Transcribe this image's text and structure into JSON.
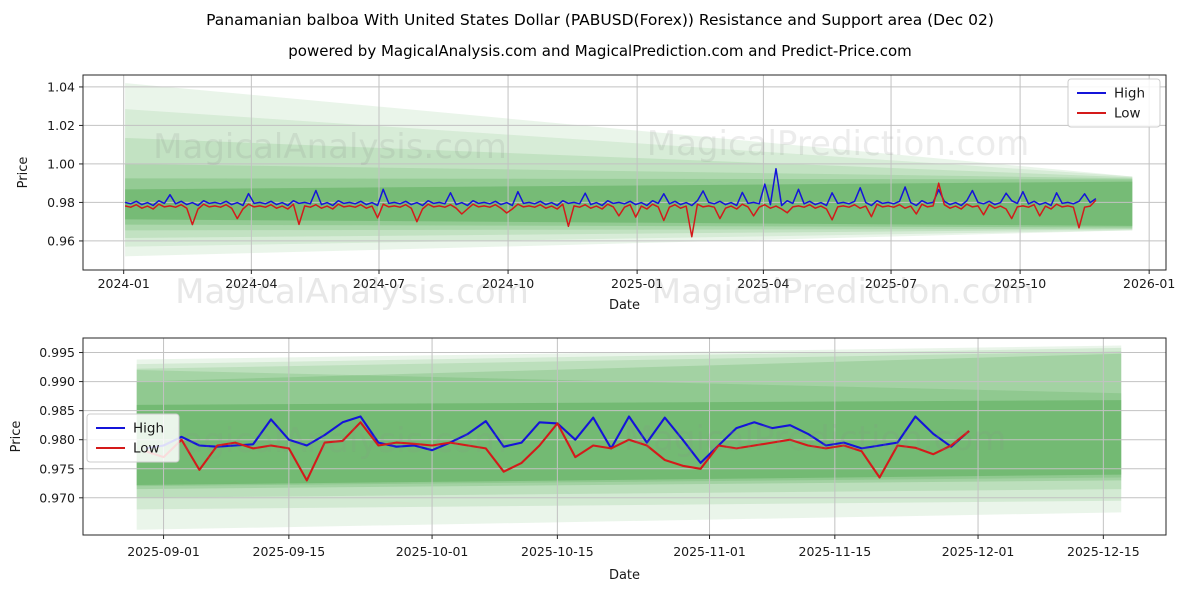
{
  "page": {
    "title": "Panamanian balboa With United States Dollar (PABUSD(Forex)) Resistance and Support area (Dec 02)",
    "subtitle": "powered by MagicalAnalysis.com and MagicalPrediction.com and Predict-Price.com"
  },
  "colors": {
    "high": "#1414d9",
    "low": "#d41a1a",
    "band": "#339933",
    "grid": "#c2c2c2",
    "axis": "#262626",
    "text": "#1a1a1a",
    "watermark": "#8a8a8a",
    "legend_border": "#cccccc",
    "legend_bg": "#ffffff"
  },
  "watermark_texts": [
    "MagicalAnalysis.com",
    "MagicalPrediction.com"
  ],
  "chart_data": [
    {
      "type": "line",
      "title": "",
      "xlabel": "Date",
      "ylabel": "Price",
      "xlim": [
        "2023-12-03",
        "2026-01-13"
      ],
      "ylim": [
        0.9449,
        1.0462
      ],
      "xticks": [
        {
          "v": "2024-01-01",
          "label": "2024-01"
        },
        {
          "v": "2024-04-01",
          "label": "2024-04"
        },
        {
          "v": "2024-07-01",
          "label": "2024-07"
        },
        {
          "v": "2024-10-01",
          "label": "2024-10"
        },
        {
          "v": "2025-01-01",
          "label": "2025-01"
        },
        {
          "v": "2025-04-01",
          "label": "2025-04"
        },
        {
          "v": "2025-07-01",
          "label": "2025-07"
        },
        {
          "v": "2025-10-01",
          "label": "2025-10"
        },
        {
          "v": "2026-01-01",
          "label": "2026-01"
        }
      ],
      "yticks": [
        {
          "v": 0.96,
          "label": "0.96"
        },
        {
          "v": 0.98,
          "label": "0.98"
        },
        {
          "v": 1.0,
          "label": "1.00"
        },
        {
          "v": 1.02,
          "label": "1.02"
        },
        {
          "v": 1.04,
          "label": "1.04"
        }
      ],
      "grid": true,
      "legend_position": "upper-right",
      "bands": {
        "x0": "2024-01-02",
        "x1": "2025-12-20",
        "layers": [
          {
            "top0": 1.042,
            "bot0": 0.952,
            "top1": 0.9935,
            "bot1": 0.9655,
            "opacity": 0.1
          },
          {
            "top0": 1.0285,
            "bot0": 0.957,
            "top1": 0.9935,
            "bot1": 0.9655,
            "opacity": 0.1
          },
          {
            "top0": 1.0135,
            "bot0": 0.9615,
            "top1": 0.993,
            "bot1": 0.966,
            "opacity": 0.12
          },
          {
            "top0": 1.0,
            "bot0": 0.9655,
            "top1": 0.9925,
            "bot1": 0.9663,
            "opacity": 0.14
          },
          {
            "top0": 0.9925,
            "bot0": 0.9685,
            "top1": 0.992,
            "bot1": 0.967,
            "opacity": 0.2
          },
          {
            "top0": 0.9868,
            "bot0": 0.9712,
            "top1": 0.9908,
            "bot1": 0.9678,
            "opacity": 0.3
          }
        ]
      },
      "series": [
        {
          "name": "High",
          "color_key": "high",
          "start": "2024-01-02",
          "step_days": 4,
          "values": [
            0.98,
            0.9793,
            0.9806,
            0.9789,
            0.9799,
            0.9784,
            0.9809,
            0.9795,
            0.984,
            0.9793,
            0.9806,
            0.9789,
            0.9799,
            0.9784,
            0.9809,
            0.9795,
            0.98,
            0.9793,
            0.9806,
            0.9789,
            0.9799,
            0.9784,
            0.9846,
            0.9795,
            0.98,
            0.9793,
            0.9806,
            0.9789,
            0.9799,
            0.9784,
            0.9809,
            0.9795,
            0.98,
            0.9793,
            0.9862,
            0.9789,
            0.9799,
            0.9784,
            0.9809,
            0.9795,
            0.98,
            0.9793,
            0.9806,
            0.9789,
            0.9799,
            0.9784,
            0.9868,
            0.9795,
            0.98,
            0.9793,
            0.9806,
            0.9789,
            0.9799,
            0.9784,
            0.9809,
            0.9795,
            0.98,
            0.9793,
            0.985,
            0.9789,
            0.9799,
            0.9784,
            0.9809,
            0.9795,
            0.98,
            0.9793,
            0.9806,
            0.9789,
            0.9799,
            0.9784,
            0.9856,
            0.9795,
            0.98,
            0.9793,
            0.9806,
            0.9789,
            0.9799,
            0.9784,
            0.9809,
            0.9795,
            0.98,
            0.9793,
            0.9848,
            0.9789,
            0.9799,
            0.9784,
            0.9809,
            0.9795,
            0.98,
            0.9793,
            0.9806,
            0.9789,
            0.9799,
            0.9784,
            0.9809,
            0.9795,
            0.9845,
            0.9793,
            0.9806,
            0.9789,
            0.9799,
            0.9784,
            0.9809,
            0.986,
            0.98,
            0.9793,
            0.9806,
            0.9789,
            0.9799,
            0.9784,
            0.9852,
            0.9795,
            0.98,
            0.9793,
            0.9895,
            0.9789,
            0.9975,
            0.9784,
            0.9809,
            0.9795,
            0.9868,
            0.9793,
            0.9806,
            0.9789,
            0.9799,
            0.9784,
            0.985,
            0.9795,
            0.98,
            0.9793,
            0.9806,
            0.9876,
            0.9799,
            0.9784,
            0.9809,
            0.9795,
            0.98,
            0.9793,
            0.9806,
            0.988,
            0.9799,
            0.9784,
            0.9809,
            0.9795,
            0.98,
            0.9866,
            0.9806,
            0.9789,
            0.9799,
            0.9784,
            0.9809,
            0.9862,
            0.98,
            0.9793,
            0.9806,
            0.9789,
            0.9799,
            0.9848,
            0.9809,
            0.9795,
            0.9856,
            0.9793,
            0.9806,
            0.9789,
            0.9799,
            0.9784,
            0.985,
            0.9795,
            0.98,
            0.9793,
            0.9806,
            0.9845,
            0.9799,
            0.982
          ]
        },
        {
          "name": "Low",
          "color_key": "low",
          "start": "2024-01-02",
          "step_days": 4,
          "values": [
            0.9782,
            0.9775,
            0.9788,
            0.977,
            0.9781,
            0.9766,
            0.9791,
            0.9777,
            0.9782,
            0.9775,
            0.9788,
            0.977,
            0.9685,
            0.9766,
            0.9791,
            0.9777,
            0.9782,
            0.9775,
            0.9788,
            0.977,
            0.9716,
            0.9766,
            0.9791,
            0.9777,
            0.9782,
            0.9775,
            0.9788,
            0.977,
            0.9781,
            0.9766,
            0.9791,
            0.9686,
            0.9782,
            0.9775,
            0.9788,
            0.977,
            0.9781,
            0.9766,
            0.9791,
            0.9777,
            0.9782,
            0.9775,
            0.9788,
            0.977,
            0.9781,
            0.972,
            0.9791,
            0.9777,
            0.9782,
            0.9775,
            0.9788,
            0.977,
            0.97,
            0.9766,
            0.9791,
            0.9777,
            0.9782,
            0.9775,
            0.9788,
            0.977,
            0.974,
            0.9766,
            0.9791,
            0.9777,
            0.9782,
            0.9775,
            0.9788,
            0.977,
            0.9745,
            0.9766,
            0.9791,
            0.9777,
            0.9782,
            0.9775,
            0.9788,
            0.977,
            0.9781,
            0.9766,
            0.9791,
            0.9676,
            0.9782,
            0.9775,
            0.9788,
            0.977,
            0.9781,
            0.9766,
            0.9791,
            0.9777,
            0.973,
            0.9775,
            0.9788,
            0.9724,
            0.9781,
            0.9766,
            0.9791,
            0.9777,
            0.9706,
            0.9775,
            0.9788,
            0.977,
            0.9781,
            0.9622,
            0.9791,
            0.9777,
            0.9782,
            0.9775,
            0.9716,
            0.977,
            0.9781,
            0.9766,
            0.9791,
            0.9777,
            0.973,
            0.9775,
            0.9788,
            0.977,
            0.9781,
            0.9766,
            0.9746,
            0.9777,
            0.9782,
            0.9775,
            0.9788,
            0.977,
            0.9781,
            0.9766,
            0.971,
            0.9777,
            0.9782,
            0.9775,
            0.9788,
            0.977,
            0.9781,
            0.9726,
            0.9791,
            0.9777,
            0.9782,
            0.9775,
            0.9788,
            0.977,
            0.9781,
            0.974,
            0.9791,
            0.9777,
            0.9782,
            0.99,
            0.9788,
            0.977,
            0.9781,
            0.9766,
            0.9791,
            0.9777,
            0.9782,
            0.9736,
            0.9788,
            0.977,
            0.9781,
            0.9766,
            0.9716,
            0.9777,
            0.9782,
            0.9775,
            0.9788,
            0.973,
            0.9781,
            0.9766,
            0.9791,
            0.9777,
            0.9782,
            0.9775,
            0.9668,
            0.9775,
            0.9781,
            0.9812
          ]
        }
      ]
    },
    {
      "type": "line",
      "title": "",
      "xlabel": "Date",
      "ylabel": "Price",
      "xlim": [
        "2025-08-23",
        "2025-12-22"
      ],
      "ylim": [
        0.9636,
        0.9975
      ],
      "xticks": [
        {
          "v": "2025-09-01",
          "label": "2025-09-01"
        },
        {
          "v": "2025-09-15",
          "label": "2025-09-15"
        },
        {
          "v": "2025-10-01",
          "label": "2025-10-01"
        },
        {
          "v": "2025-10-15",
          "label": "2025-10-15"
        },
        {
          "v": "2025-11-01",
          "label": "2025-11-01"
        },
        {
          "v": "2025-11-15",
          "label": "2025-11-15"
        },
        {
          "v": "2025-12-01",
          "label": "2025-12-01"
        },
        {
          "v": "2025-12-15",
          "label": "2025-12-15"
        }
      ],
      "yticks": [
        {
          "v": 0.97,
          "label": "0.970"
        },
        {
          "v": 0.975,
          "label": "0.975"
        },
        {
          "v": 0.98,
          "label": "0.980"
        },
        {
          "v": 0.985,
          "label": "0.985"
        },
        {
          "v": 0.99,
          "label": "0.990"
        },
        {
          "v": 0.995,
          "label": "0.995"
        }
      ],
      "grid": true,
      "legend_position": "left",
      "bands": {
        "x0": "2025-08-29",
        "x1": "2025-12-17",
        "layers": [
          {
            "top0": 0.9938,
            "bot0": 0.9645,
            "top1": 0.9962,
            "bot1": 0.9675,
            "opacity": 0.1
          },
          {
            "top0": 0.993,
            "bot0": 0.968,
            "top1": 0.9958,
            "bot1": 0.9695,
            "opacity": 0.12
          },
          {
            "top0": 0.9922,
            "bot0": 0.97,
            "top1": 0.9952,
            "bot1": 0.9715,
            "opacity": 0.14
          },
          {
            "top0": 0.99,
            "bot0": 0.9715,
            "top1": 0.9948,
            "bot1": 0.973,
            "opacity": 0.18
          },
          {
            "top0": 0.992,
            "bot0": 0.972,
            "top1": 0.988,
            "bot1": 0.9735,
            "opacity": 0.16
          },
          {
            "top0": 0.986,
            "bot0": 0.9722,
            "top1": 0.9868,
            "bot1": 0.974,
            "opacity": 0.3
          }
        ]
      },
      "series": [
        {
          "name": "High",
          "color_key": "high",
          "start": "2025-08-30",
          "step_days": 2,
          "values": [
            0.9785,
            0.979,
            0.9805,
            0.979,
            0.9788,
            0.979,
            0.9792,
            0.9835,
            0.98,
            0.979,
            0.9808,
            0.983,
            0.984,
            0.9795,
            0.9788,
            0.979,
            0.9782,
            0.9795,
            0.981,
            0.9832,
            0.9788,
            0.9795,
            0.983,
            0.9828,
            0.98,
            0.9838,
            0.9785,
            0.984,
            0.9795,
            0.9838,
            0.98,
            0.976,
            0.979,
            0.982,
            0.983,
            0.982,
            0.9825,
            0.981,
            0.979,
            0.9795,
            0.9785,
            0.979,
            0.9795,
            0.984,
            0.981,
            0.9788,
            0.9815
          ]
        },
        {
          "name": "Low",
          "color_key": "low",
          "start": "2025-08-30",
          "step_days": 2,
          "values": [
            0.978,
            0.977,
            0.98,
            0.9748,
            0.979,
            0.9795,
            0.9785,
            0.979,
            0.9785,
            0.973,
            0.9795,
            0.9798,
            0.983,
            0.979,
            0.9795,
            0.9793,
            0.979,
            0.9795,
            0.979,
            0.9785,
            0.9745,
            0.976,
            0.979,
            0.9828,
            0.977,
            0.979,
            0.9785,
            0.98,
            0.979,
            0.9765,
            0.9755,
            0.975,
            0.979,
            0.9785,
            0.979,
            0.9795,
            0.98,
            0.979,
            0.9785,
            0.979,
            0.978,
            0.9735,
            0.979,
            0.9786,
            0.9775,
            0.979,
            0.9815
          ]
        }
      ]
    }
  ]
}
